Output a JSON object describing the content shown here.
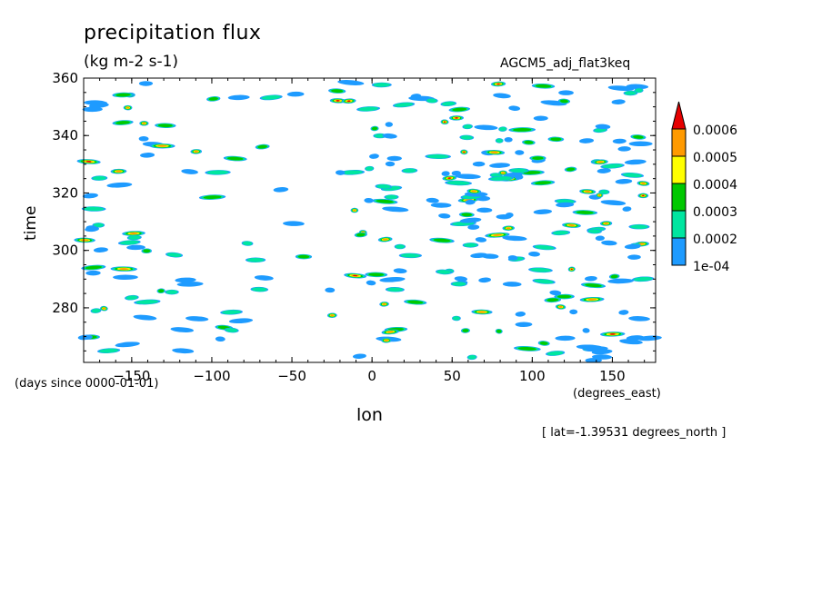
{
  "chart_data": {
    "type": "heatmap",
    "title": "precipitation flux",
    "units": "(kg m-2 s-1)",
    "dataset": "AGCM5_adj_flat3keq",
    "xlabel": "lon",
    "xunits": "(degrees_east)",
    "ylabel": "time",
    "yunits": "(days since 0000-01-01)",
    "annotation": "[ lat=-1.39531 degrees_north ]",
    "xlim": [
      -180,
      177
    ],
    "ylim": [
      261,
      360
    ],
    "xticks": [
      -150,
      -100,
      -50,
      0,
      50,
      100,
      150
    ],
    "yticks": [
      280,
      300,
      320,
      340,
      360
    ],
    "grid": false,
    "colorbar": {
      "levels": [
        "1e-04",
        "0.0002",
        "0.0003",
        "0.0004",
        "0.0005",
        "0.0006"
      ],
      "colors": [
        "#1e9bff",
        "#00e6a0",
        "#00c800",
        "#ffff00",
        "#ff9a00",
        "#e60000"
      ],
      "extend": "max"
    },
    "field_description": "sparse eastward/westward-propagating rain streaks; densest near lon 0 and lon 60-150"
  }
}
